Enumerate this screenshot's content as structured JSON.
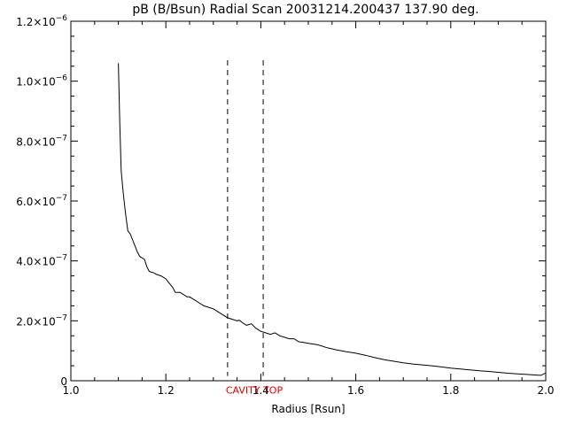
{
  "chart_data": {
    "type": "line",
    "title": "pB (B/Bsun) Radial Scan 20031214.200437 137.90 deg.",
    "xlabel": "Radius [Rsun]",
    "ylabel": "",
    "xlim": [
      1.0,
      2.0
    ],
    "ylim": [
      0,
      1.2e-06
    ],
    "grid": false,
    "x_ticks": [
      1.0,
      1.2,
      1.4,
      1.6,
      1.8,
      2.0
    ],
    "x_tick_labels": [
      "1.0",
      "1.2",
      "1.4",
      "1.6",
      "1.8",
      "2.0"
    ],
    "y_ticks": [
      0,
      2e-07,
      4e-07,
      6e-07,
      8e-07,
      1e-06,
      1.2e-06
    ],
    "y_tick_labels": [
      {
        "mant": "0",
        "exp": ""
      },
      {
        "mant": "2.0×10",
        "exp": "−7"
      },
      {
        "mant": "4.0×10",
        "exp": "−7"
      },
      {
        "mant": "6.0×10",
        "exp": "−7"
      },
      {
        "mant": "8.0×10",
        "exp": "−7"
      },
      {
        "mant": "1.0×10",
        "exp": "−6"
      },
      {
        "mant": "1.2×10",
        "exp": "−6"
      }
    ],
    "colors": {
      "series": "#000000",
      "annotation": "#e00000",
      "marker_lines": "#000000"
    },
    "series": [
      {
        "x": [
          1.1,
          1.103,
          1.106,
          1.11,
          1.115,
          1.12,
          1.125,
          1.13,
          1.135,
          1.14,
          1.145,
          1.15,
          1.155,
          1.16,
          1.165,
          1.17,
          1.175,
          1.18,
          1.19,
          1.2,
          1.205,
          1.21,
          1.215,
          1.22,
          1.23,
          1.24,
          1.245,
          1.25,
          1.26,
          1.27,
          1.28,
          1.29,
          1.3,
          1.31,
          1.32,
          1.33,
          1.34,
          1.35,
          1.355,
          1.36,
          1.37,
          1.38,
          1.39,
          1.4,
          1.41,
          1.42,
          1.43,
          1.44,
          1.45,
          1.46,
          1.47,
          1.48,
          1.49,
          1.5,
          1.52,
          1.54,
          1.56,
          1.58,
          1.6,
          1.62,
          1.64,
          1.66,
          1.68,
          1.7,
          1.72,
          1.74,
          1.76,
          1.78,
          1.8,
          1.82,
          1.84,
          1.86,
          1.88,
          1.9,
          1.92,
          1.94,
          1.96,
          1.98,
          1.99,
          2.0
        ],
        "y": [
          1.06e-06,
          8.6e-07,
          7e-07,
          6.3e-07,
          5.6e-07,
          5e-07,
          4.9e-07,
          4.7e-07,
          4.5e-07,
          4.3e-07,
          4.15e-07,
          4.1e-07,
          4.05e-07,
          3.8e-07,
          3.65e-07,
          3.62e-07,
          3.6e-07,
          3.55e-07,
          3.5e-07,
          3.4e-07,
          3.3e-07,
          3.2e-07,
          3.1e-07,
          2.95e-07,
          2.95e-07,
          2.85e-07,
          2.8e-07,
          2.8e-07,
          2.7e-07,
          2.6e-07,
          2.5e-07,
          2.45e-07,
          2.4e-07,
          2.3e-07,
          2.2e-07,
          2.1e-07,
          2.05e-07,
          2e-07,
          2.02e-07,
          1.95e-07,
          1.85e-07,
          1.9e-07,
          1.75e-07,
          1.65e-07,
          1.6e-07,
          1.55e-07,
          1.6e-07,
          1.5e-07,
          1.45e-07,
          1.4e-07,
          1.4e-07,
          1.3e-07,
          1.28e-07,
          1.25e-07,
          1.2e-07,
          1.1e-07,
          1.03e-07,
          9.7e-08,
          9.2e-08,
          8.5e-08,
          7.7e-08,
          7e-08,
          6.5e-08,
          6e-08,
          5.6e-08,
          5.3e-08,
          5e-08,
          4.6e-08,
          4.2e-08,
          3.9e-08,
          3.6e-08,
          3.3e-08,
          3.1e-08,
          2.8e-08,
          2.5e-08,
          2.3e-08,
          2.1e-08,
          1.9e-08,
          1.8e-08,
          2.6e-08
        ]
      }
    ],
    "marker_lines": [
      1.33,
      1.405
    ],
    "marker_line_ylim": [
      1.6e-08,
      1.07e-06
    ],
    "annotation": {
      "text": "CAVITY TOP",
      "x": 1.33,
      "y": -4.3e-08
    }
  }
}
